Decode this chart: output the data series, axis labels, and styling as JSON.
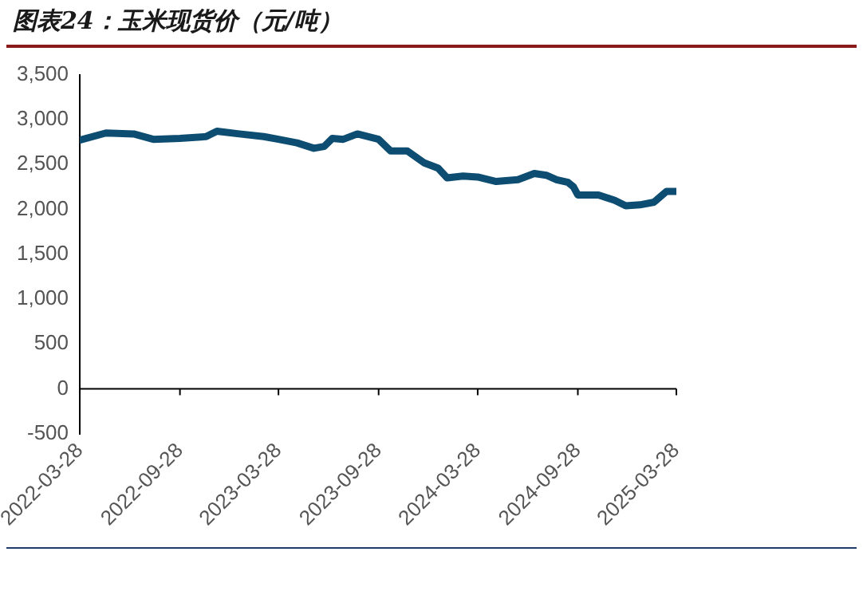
{
  "chart_data": {
    "type": "line",
    "title": "图表24：玉米现货价（元/吨）",
    "x": [
      "2022-03-28",
      "2022-05-15",
      "2022-07-05",
      "2022-08-10",
      "2022-09-28",
      "2022-11-15",
      "2022-12-05",
      "2023-01-15",
      "2023-03-01",
      "2023-03-28",
      "2023-05-01",
      "2023-06-01",
      "2023-06-20",
      "2023-07-05",
      "2023-07-25",
      "2023-08-20",
      "2023-09-28",
      "2023-10-20",
      "2023-11-20",
      "2023-12-20",
      "2024-01-15",
      "2024-02-01",
      "2024-03-01",
      "2024-03-28",
      "2024-05-01",
      "2024-06-10",
      "2024-07-10",
      "2024-08-01",
      "2024-08-20",
      "2024-09-10",
      "2024-09-20",
      "2024-09-28",
      "2024-11-05",
      "2024-12-05",
      "2024-12-25",
      "2025-01-20",
      "2025-02-15",
      "2025-03-10",
      "2025-03-28"
    ],
    "series": [
      {
        "color": "#0e4d72",
        "values": [
          2770,
          2850,
          2840,
          2780,
          2790,
          2810,
          2870,
          2840,
          2810,
          2780,
          2740,
          2680,
          2700,
          2790,
          2780,
          2840,
          2780,
          2650,
          2650,
          2520,
          2460,
          2350,
          2370,
          2360,
          2310,
          2330,
          2400,
          2380,
          2330,
          2300,
          2250,
          2160,
          2160,
          2100,
          2040,
          2050,
          2080,
          2200,
          2200
        ]
      }
    ],
    "xlim": [
      "2022-03-28",
      "2025-03-28"
    ],
    "xticks": [
      "2022-03-28",
      "2022-09-28",
      "2023-03-28",
      "2023-09-28",
      "2024-03-28",
      "2024-09-28",
      "2025-03-28"
    ],
    "ylim": [
      -500,
      3500
    ],
    "yticks": [
      {
        "value": -500,
        "label": "-500"
      },
      0,
      {
        "value": 500,
        "label": "500"
      },
      {
        "value": 1000,
        "label": "1,000"
      },
      {
        "value": 1500,
        "label": "1,500"
      },
      {
        "value": 2000,
        "label": "2,000"
      },
      {
        "value": 2500,
        "label": "2,500"
      },
      {
        "value": 3000,
        "label": "3,000"
      },
      {
        "value": 3500,
        "label": "3,500"
      }
    ],
    "grid": false,
    "legend": false,
    "marker": "none",
    "line_style": "solid"
  }
}
